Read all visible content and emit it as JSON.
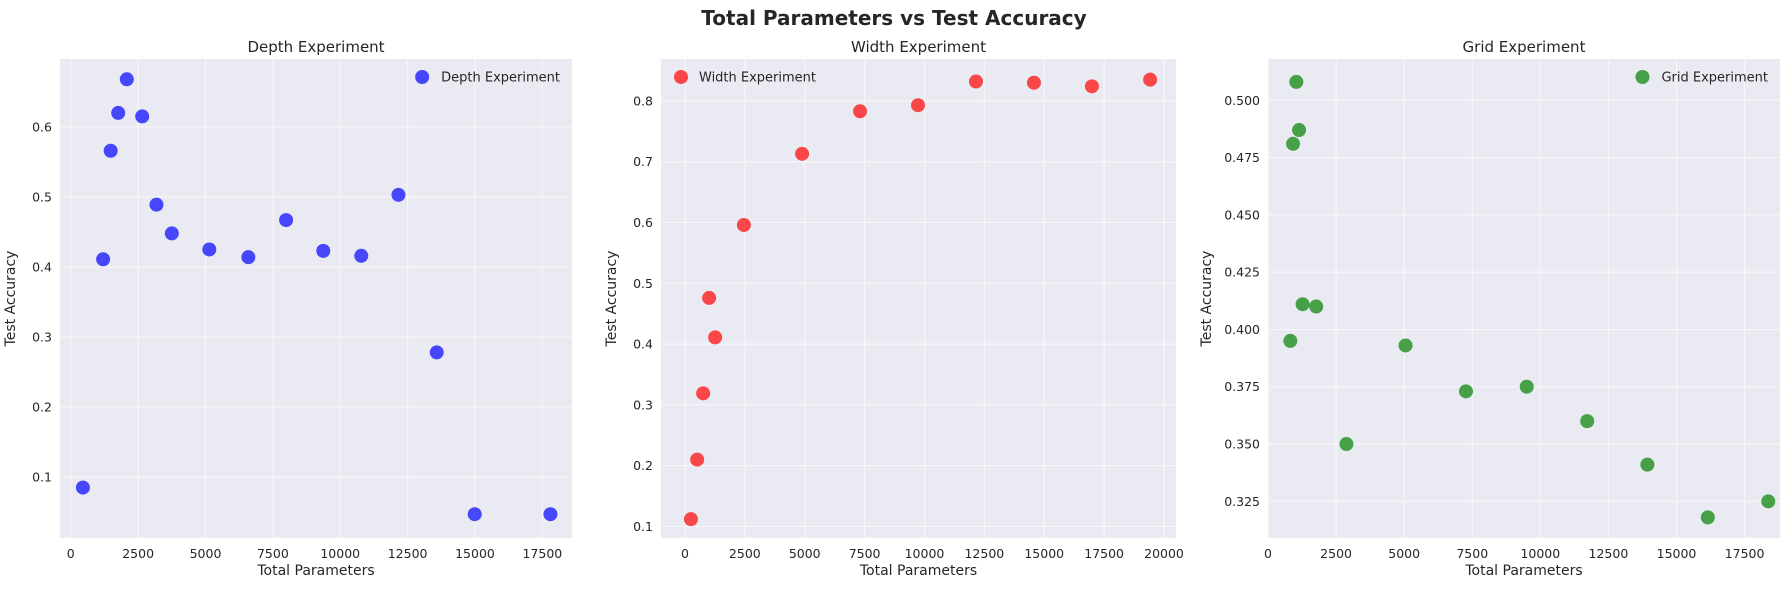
{
  "figure": {
    "title": "Total Parameters vs Test Accuracy"
  },
  "chart_data": [
    {
      "type": "scatter",
      "title": "Depth Experiment",
      "xlabel": "Total Parameters",
      "ylabel": "Test Accuracy",
      "xlim": [
        -400,
        18600
      ],
      "ylim": [
        0.013,
        0.697
      ],
      "xticks": [
        0,
        2500,
        5000,
        7500,
        10000,
        12500,
        15000,
        17500
      ],
      "xtick_labels": [
        "0",
        "2500",
        "5000",
        "7500",
        "10000",
        "12500",
        "15000",
        "17500"
      ],
      "yticks": [
        0.1,
        0.2,
        0.3,
        0.4,
        0.5,
        0.6
      ],
      "ytick_labels": [
        "0.1",
        "0.2",
        "0.3",
        "0.4",
        "0.5",
        "0.6"
      ],
      "grid": true,
      "legend": "top-right",
      "series": [
        {
          "name": "Depth Experiment",
          "color": "#0000ff",
          "x": [
            450,
            1200,
            1480,
            1760,
            2080,
            2650,
            3180,
            3750,
            5140,
            6590,
            7990,
            9370,
            10780,
            12160,
            13580,
            14990,
            17800
          ],
          "y": [
            0.085,
            0.411,
            0.566,
            0.62,
            0.668,
            0.615,
            0.489,
            0.448,
            0.425,
            0.414,
            0.467,
            0.423,
            0.416,
            0.503,
            0.278,
            0.047,
            0.047
          ]
        }
      ]
    },
    {
      "type": "scatter",
      "title": "Width Experiment",
      "xlabel": "Total Parameters",
      "ylabel": "Test Accuracy",
      "xlim": [
        -1000,
        20500
      ],
      "ylim": [
        0.081,
        0.869
      ],
      "xticks": [
        0,
        2500,
        5000,
        7500,
        10000,
        12500,
        15000,
        17500,
        20000
      ],
      "xtick_labels": [
        "0",
        "2500",
        "5000",
        "7500",
        "10000",
        "12500",
        "15000",
        "17500",
        "20000"
      ],
      "yticks": [
        0.1,
        0.2,
        0.3,
        0.4,
        0.5,
        0.6,
        0.7,
        0.8
      ],
      "ytick_labels": [
        "0.1",
        "0.2",
        "0.3",
        "0.4",
        "0.5",
        "0.6",
        "0.7",
        "0.8"
      ],
      "grid": true,
      "legend": "top-left",
      "series": [
        {
          "name": "Width Experiment",
          "color": "#ff0000",
          "x": [
            250,
            510,
            760,
            1010,
            1260,
            2460,
            4890,
            7310,
            9730,
            12150,
            14570,
            16990,
            19420
          ],
          "y": [
            0.112,
            0.21,
            0.319,
            0.476,
            0.411,
            0.596,
            0.713,
            0.783,
            0.793,
            0.832,
            0.83,
            0.824,
            0.835
          ]
        }
      ]
    },
    {
      "type": "scatter",
      "title": "Grid Experiment",
      "xlabel": "Total Parameters",
      "ylabel": "Test Accuracy",
      "xlim": [
        0,
        18800
      ],
      "ylim": [
        0.309,
        0.518
      ],
      "xticks": [
        0,
        2500,
        5000,
        7500,
        10000,
        12500,
        15000,
        17500
      ],
      "xtick_labels": [
        "0",
        "2500",
        "5000",
        "7500",
        "10000",
        "12500",
        "15000",
        "17500"
      ],
      "yticks": [
        0.325,
        0.35,
        0.375,
        0.4,
        0.425,
        0.45,
        0.475,
        0.5
      ],
      "ytick_labels": [
        "0.325",
        "0.350",
        "0.375",
        "0.400",
        "0.425",
        "0.450",
        "0.475",
        "0.500"
      ],
      "grid": true,
      "legend": "top-right",
      "series": [
        {
          "name": "Grid Experiment",
          "color": "#008000",
          "x": [
            820,
            920,
            1040,
            1140,
            1270,
            1770,
            2880,
            5050,
            7270,
            9500,
            11720,
            13930,
            16150,
            18370
          ],
          "y": [
            0.395,
            0.481,
            0.508,
            0.487,
            0.411,
            0.41,
            0.35,
            0.393,
            0.373,
            0.375,
            0.36,
            0.341,
            0.318,
            0.325
          ]
        }
      ]
    }
  ]
}
